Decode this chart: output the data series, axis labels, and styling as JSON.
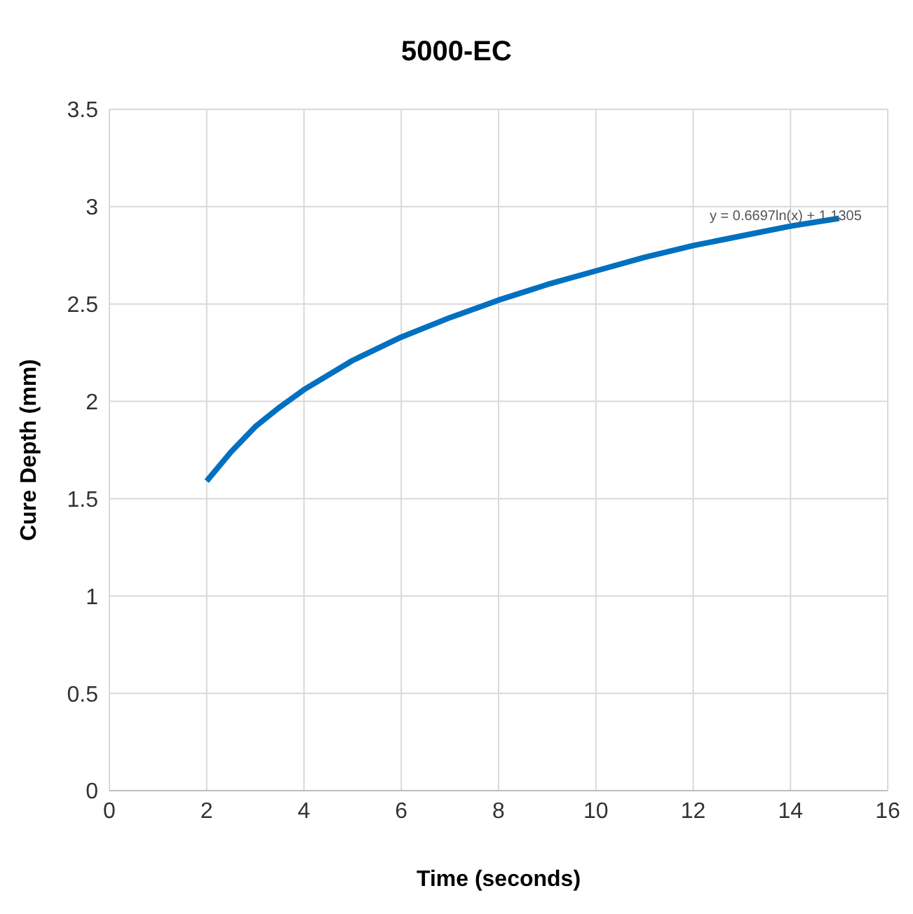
{
  "chart_data": {
    "type": "line",
    "title": "5000-EC",
    "xlabel": "Time (seconds)",
    "ylabel": "Cure Depth (mm)",
    "x": [
      2,
      2.5,
      3,
      3.5,
      4,
      5,
      6,
      7,
      8,
      9,
      10,
      11,
      12,
      13,
      14,
      15
    ],
    "series": [
      {
        "color": "#0070c0",
        "values": [
          1.59,
          1.74,
          1.87,
          1.97,
          2.06,
          2.21,
          2.33,
          2.43,
          2.52,
          2.6,
          2.67,
          2.74,
          2.8,
          2.85,
          2.9,
          2.94
        ]
      }
    ],
    "xlim": [
      0,
      16
    ],
    "xticks": [
      0,
      2,
      4,
      6,
      8,
      10,
      12,
      14,
      16
    ],
    "ylim": [
      0,
      3.5
    ],
    "yticks": [
      0,
      0.5,
      1,
      1.5,
      2,
      2.5,
      3,
      3.5
    ],
    "grid": true,
    "marker": "none",
    "line_style": "solid",
    "legend": false,
    "annotations": [
      "y = 0.6697ln(x) + 1.1305"
    ]
  }
}
